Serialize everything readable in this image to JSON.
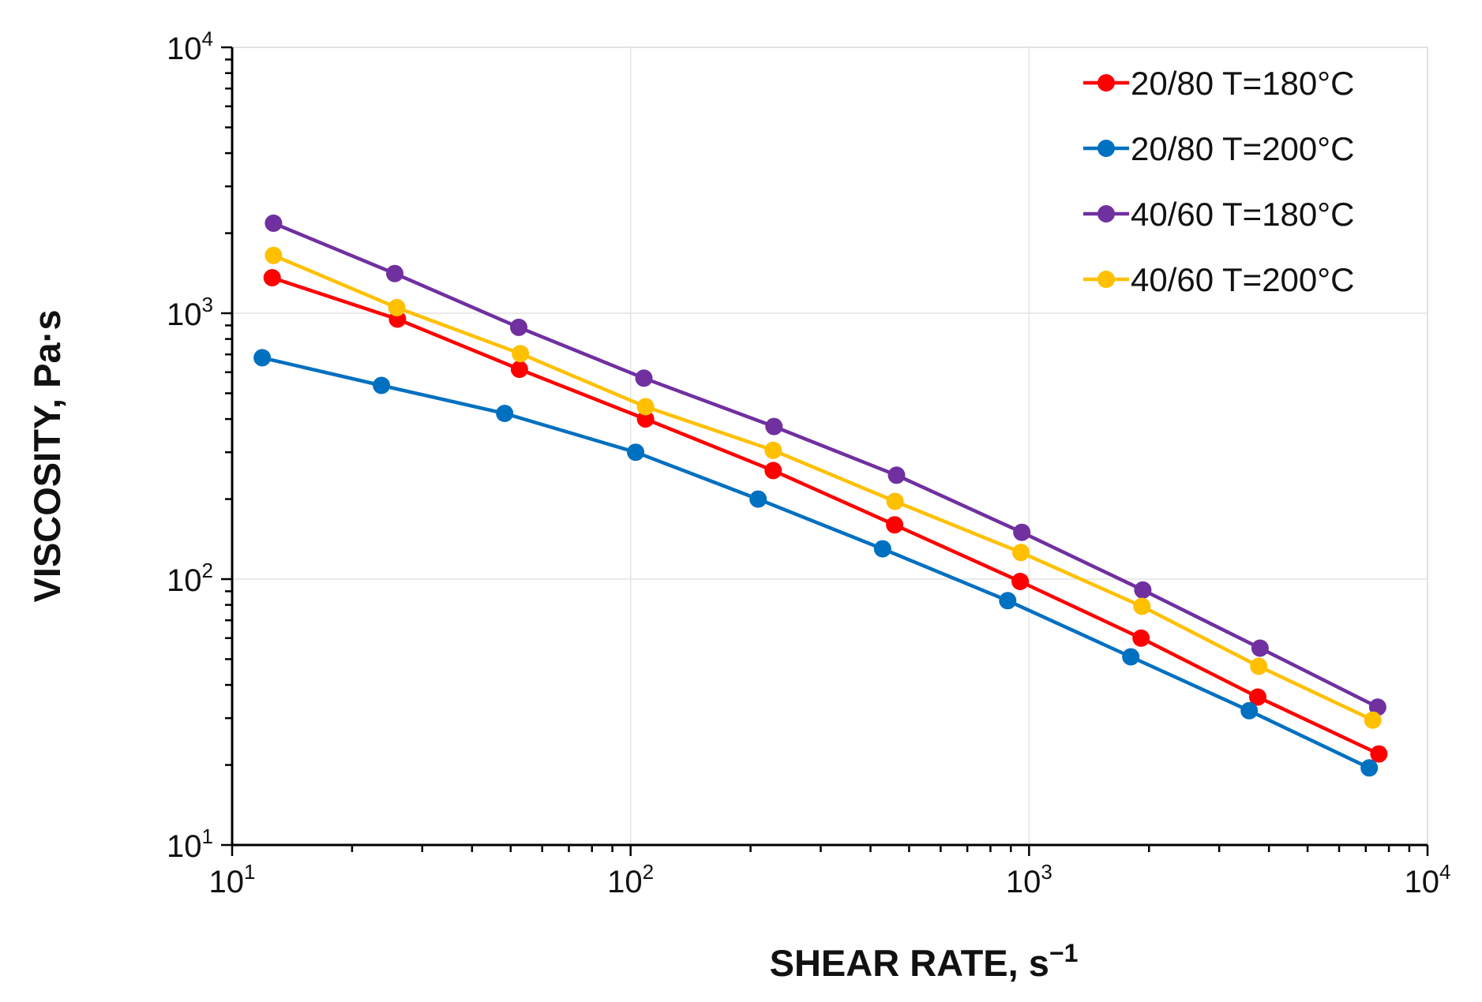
{
  "chart_data": {
    "type": "line",
    "xscale": "log",
    "yscale": "log",
    "xlim": [
      10,
      10000
    ],
    "ylim": [
      10,
      10000
    ],
    "grid": true,
    "legend_position": "top-right",
    "xlabel": "SHEAR RATE, s",
    "xlabel_sup": "−1",
    "ylabel": "VISCOSITY, Pa·s",
    "xticks": [
      {
        "value": 10,
        "base": "10",
        "exp": "1"
      },
      {
        "value": 100,
        "base": "10",
        "exp": "2"
      },
      {
        "value": 1000,
        "base": "10",
        "exp": "3"
      },
      {
        "value": 10000,
        "base": "10",
        "exp": "4"
      }
    ],
    "yticks": [
      {
        "value": 10,
        "base": "10",
        "exp": "1"
      },
      {
        "value": 100,
        "base": "10",
        "exp": "2"
      },
      {
        "value": 1000,
        "base": "10",
        "exp": "3"
      },
      {
        "value": 10000,
        "base": "10",
        "exp": "4"
      }
    ],
    "series": [
      {
        "name": "20/80 T=180°C",
        "color": "#ff0000",
        "x": [
          12.6,
          26.0,
          52.6,
          109,
          228,
          460,
          950,
          1910,
          3750,
          7550
        ],
        "y": [
          1360,
          950,
          615,
          400,
          256,
          160,
          98,
          60,
          36,
          22
        ]
      },
      {
        "name": "20/80 T=200°C",
        "color": "#0070c0",
        "x": [
          11.9,
          23.7,
          48.3,
          103,
          209,
          429,
          884,
          1800,
          3570,
          7140
        ],
        "y": [
          680,
          535,
          420,
          300,
          200,
          130,
          83,
          51,
          32,
          19.5
        ]
      },
      {
        "name": "40/60 T=180°C",
        "color": "#7030a0",
        "x": [
          12.7,
          25.6,
          52.4,
          108,
          229,
          465,
          959,
          1930,
          3800,
          7500
        ],
        "y": [
          2180,
          1410,
          885,
          570,
          375,
          246,
          150,
          91,
          55,
          33
        ]
      },
      {
        "name": "40/60 T=200°C",
        "color": "#ffc000",
        "x": [
          12.7,
          25.9,
          52.9,
          109,
          228,
          461,
          954,
          1920,
          3770,
          7290
        ],
        "y": [
          1650,
          1050,
          705,
          445,
          305,
          196,
          126,
          79,
          47,
          29.5
        ]
      }
    ]
  }
}
